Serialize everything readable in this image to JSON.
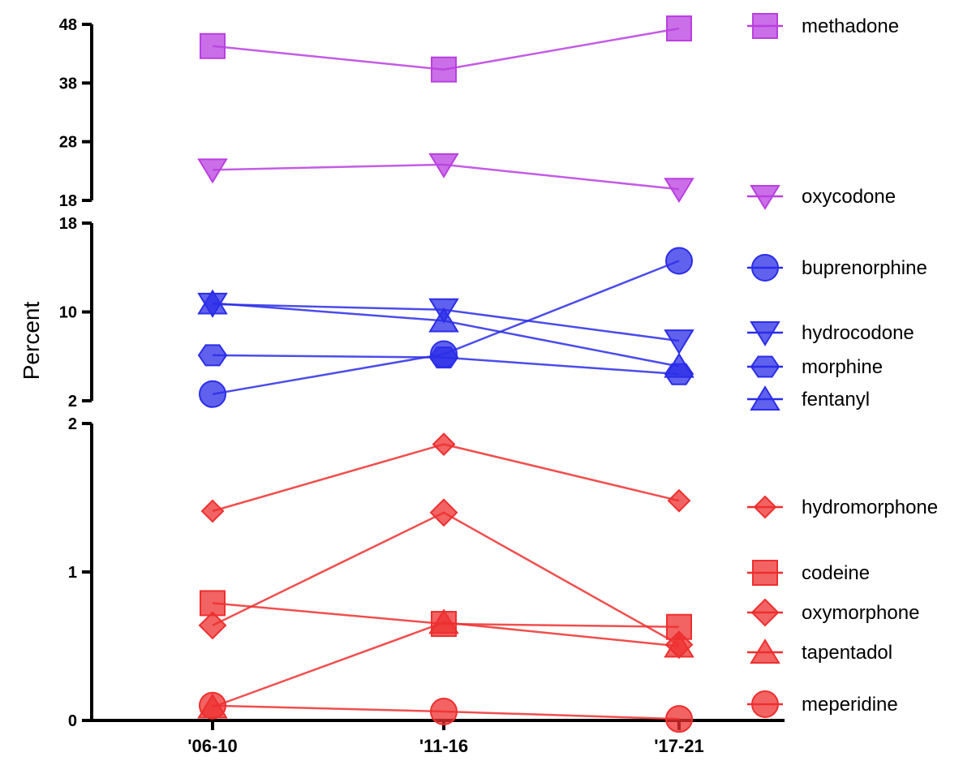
{
  "chart_data": {
    "type": "line",
    "title": "",
    "ylabel": "Percent",
    "xlabel": "",
    "categories": [
      "'06-10",
      "'11-16",
      "'17-21"
    ],
    "colors": {
      "purple": "#b93fe0",
      "blue": "#2b2de8",
      "red": "#ee2f2f"
    },
    "panels": [
      {
        "name": "top",
        "ylim": [
          18,
          48
        ],
        "ticks": [
          18,
          28,
          38,
          48
        ],
        "series": [
          {
            "name": "methadone",
            "marker": "square",
            "color": "purple",
            "values": [
              44.3,
              40.3,
              47.3
            ]
          },
          {
            "name": "oxycodone",
            "marker": "triangle-down",
            "color": "purple",
            "values": [
              23.2,
              24.1,
              19.9
            ]
          }
        ]
      },
      {
        "name": "middle",
        "ylim": [
          2,
          18
        ],
        "ticks": [
          2,
          10,
          18
        ],
        "series": [
          {
            "name": "buprenorphine",
            "marker": "circle",
            "color": "blue",
            "values": [
              2.6,
              6.2,
              14.6
            ]
          },
          {
            "name": "hydrocodone",
            "marker": "triangle-down",
            "color": "blue",
            "values": [
              10.7,
              10.2,
              7.4
            ]
          },
          {
            "name": "morphine",
            "marker": "hexagon",
            "color": "blue",
            "values": [
              6.1,
              5.9,
              4.4
            ]
          },
          {
            "name": "fentanyl",
            "marker": "triangle-up",
            "color": "blue",
            "values": [
              10.8,
              9.2,
              5.1
            ]
          }
        ]
      },
      {
        "name": "bottom",
        "ylim": [
          0,
          2
        ],
        "ticks": [
          0,
          1,
          2
        ],
        "series": [
          {
            "name": "hydromorphone",
            "marker": "diamond-small",
            "color": "red",
            "values": [
              1.41,
              1.86,
              1.48
            ]
          },
          {
            "name": "codeine",
            "marker": "square",
            "color": "red",
            "values": [
              0.79,
              0.65,
              0.63
            ]
          },
          {
            "name": "oxymorphone",
            "marker": "diamond",
            "color": "red",
            "values": [
              0.64,
              1.4,
              0.51
            ]
          },
          {
            "name": "tapentadol",
            "marker": "triangle-up",
            "color": "red",
            "values": [
              0.09,
              0.66,
              0.5
            ]
          },
          {
            "name": "meperidine",
            "marker": "circle",
            "color": "red",
            "values": [
              0.1,
              0.06,
              0.01
            ]
          }
        ]
      }
    ],
    "legend": [
      "methadone",
      "oxycodone",
      "buprenorphine",
      "hydrocodone",
      "morphine",
      "fentanyl",
      "hydromorphone",
      "codeine",
      "oxymorphone",
      "tapentadol",
      "meperidine"
    ]
  }
}
